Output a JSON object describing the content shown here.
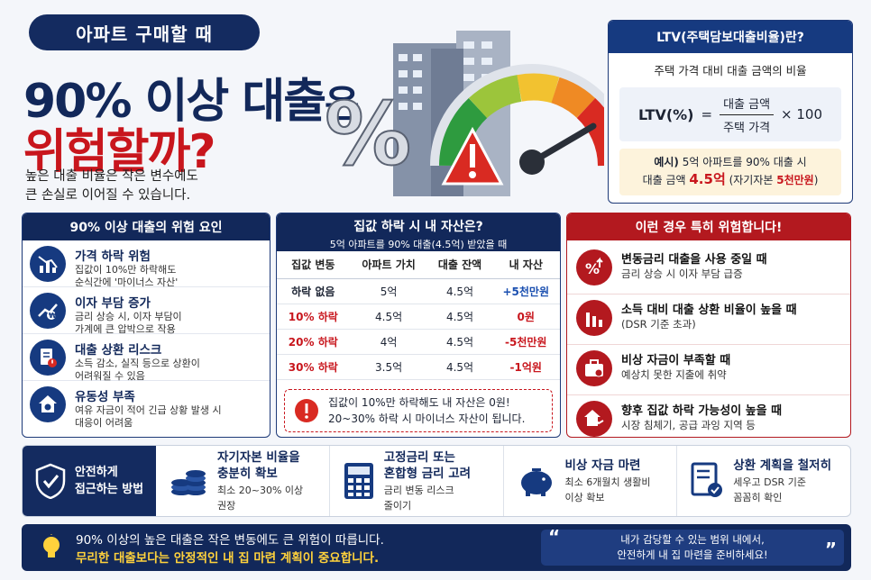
{
  "header": {
    "pill": "아파트 구매할 때",
    "title_main": "90% 이상 대출",
    "title_suffix": "은",
    "title_line2": "위험할까?",
    "subtitle_1": "높은 대출 비율은 작은 변수에도",
    "subtitle_2": "큰 손실로 이어질 수 있습니다."
  },
  "ltv": {
    "title": "LTV(주택담보대출비율)란?",
    "desc": "주택 가격 대비 대출 금액의 비율",
    "label": "LTV(%)",
    "eq": "=",
    "numerator": "대출 금액",
    "denominator": "주택 가격",
    "mult": "× 100",
    "ex_label": "예시)",
    "ex_text": "5억 아파트를 90% 대출 시",
    "ex_amount_label": "대출 금액",
    "ex_amount": "4.5억",
    "ex_equity_pre": "(자기자본 ",
    "ex_equity": "5천만원",
    "ex_equity_post": ")"
  },
  "risks": {
    "title": "90% 이상 대출의 위험 요인",
    "items": [
      {
        "title": "가격 하락 위험",
        "desc1": "집값이 10%만 하락해도",
        "desc2": "순식간에 '마이너스 자산'"
      },
      {
        "title": "이자 부담 증가",
        "desc1": "금리 상승 시, 이자 부담이",
        "desc2": "가계에 큰 압박으로 작용"
      },
      {
        "title": "대출 상환 리스크",
        "desc1": "소득 감소, 실직 등으로 상환이",
        "desc2": "어려워질 수 있음"
      },
      {
        "title": "유동성 부족",
        "desc1": "여유 자금이 적어 긴급 상황 발생 시",
        "desc2": "대응이 어려움"
      }
    ]
  },
  "table": {
    "title": "집값 하락 시 내 자산은?",
    "subtitle": "5억 아파트를 90% 대출(4.5억) 받았을 때",
    "headers": [
      "집값 변동",
      "아파트 가치",
      "대출 잔액",
      "내 자산"
    ],
    "rows": [
      {
        "change": "하락 없음",
        "value": "5억",
        "loan": "4.5억",
        "equity": "+5천만원"
      },
      {
        "change": "10% 하락",
        "value": "4.5억",
        "loan": "4.5억",
        "equity": "0원"
      },
      {
        "change": "20% 하락",
        "value": "4억",
        "loan": "4.5억",
        "equity": "-5천만원"
      },
      {
        "change": "30% 하락",
        "value": "3.5억",
        "loan": "4.5억",
        "equity": "-1억원"
      }
    ],
    "warn1": "집값이 10%만 하락해도 내 자산은 0원!",
    "warn2": "20~30% 하락 시 마이너스 자산이 됩니다."
  },
  "danger": {
    "title": "이런 경우 특히 위험합니다!",
    "items": [
      {
        "title": "변동금리 대출을 사용 중일 때",
        "desc": "금리 상승 시 이자 부담 급증"
      },
      {
        "title": "소득 대비 대출 상환 비율이 높을 때",
        "desc": "(DSR 기준 초과)"
      },
      {
        "title": "비상 자금이 부족할 때",
        "desc": "예상치 못한 지출에 취약"
      },
      {
        "title": "향후 집값 하락 가능성이 높을 때",
        "desc": "시장 침체기, 공급 과잉 지역 등"
      }
    ]
  },
  "approach": {
    "label1": "안전하게",
    "label2": "접근하는 방법",
    "items": [
      {
        "title1": "자기자본 비율을",
        "title2": "충분히 확보",
        "desc1": "최소 20~30% 이상",
        "desc2": "권장"
      },
      {
        "title1": "고정금리 또는",
        "title2": "혼합형 금리 고려",
        "desc1": "금리 변동 리스크",
        "desc2": "줄이기"
      },
      {
        "title1": "비상 자금 마련",
        "title2": "",
        "desc1": "최소 6개월치 생활비",
        "desc2": "이상 확보"
      },
      {
        "title1": "상환 계획을 철저히",
        "title2": "",
        "desc1": "세우고 DSR 기준",
        "desc2": "꼼꼼히 확인"
      }
    ]
  },
  "footer": {
    "line1": "90% 이상의 높은 대출은 작은 변동에도 큰 위험이 따릅니다.",
    "line2": "무리한 대출보다는 안정적인 내 집 마련 계획이 중요합니다.",
    "quote1": "내가 감당할 수 있는 범위 내에서,",
    "quote2": "안전하게 내 집 마련을 준비하세요!"
  },
  "colors": {
    "navy": "#12285a",
    "red": "#c8161d",
    "blue": "#1a4fb0",
    "yellow": "#ffd23c"
  }
}
